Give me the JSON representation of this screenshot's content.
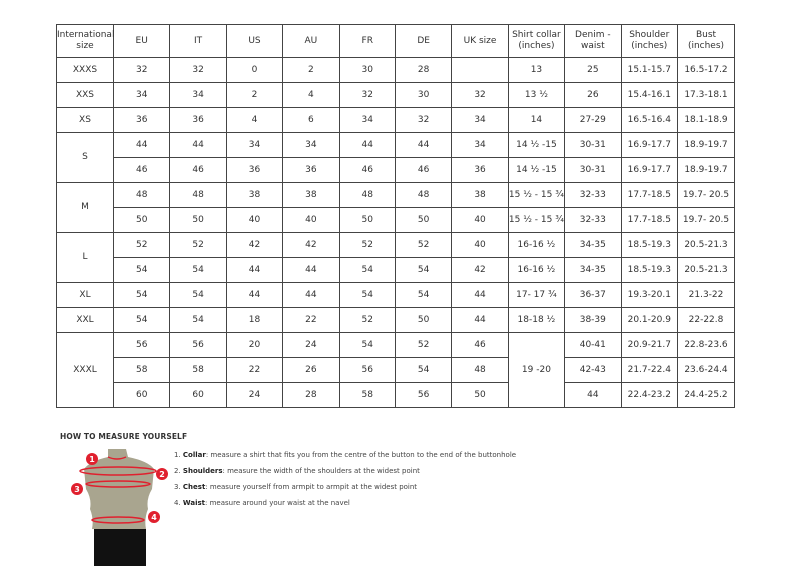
{
  "table": {
    "headers": [
      "International size",
      "EU",
      "IT",
      "US",
      "AU",
      "FR",
      "DE",
      "UK size",
      "Shirt collar (inches)",
      "Denim - waist",
      "Shoulder (inches)",
      "Bust (inches)"
    ],
    "groups": [
      {
        "size": "XXXS",
        "rows": [
          [
            "32",
            "32",
            "0",
            "2",
            "30",
            "28",
            "",
            "13",
            "25",
            "15.1-15.7",
            "16.5-17.2"
          ]
        ]
      },
      {
        "size": "XXS",
        "rows": [
          [
            "34",
            "34",
            "2",
            "4",
            "32",
            "30",
            "32",
            "13 ½",
            "26",
            "15.4-16.1",
            "17.3-18.1"
          ]
        ]
      },
      {
        "size": "XS",
        "rows": [
          [
            "36",
            "36",
            "4",
            "6",
            "34",
            "32",
            "34",
            "14",
            "27-29",
            "16.5-16.4",
            "18.1-18.9"
          ]
        ]
      },
      {
        "size": "S",
        "rows": [
          [
            "44",
            "44",
            "34",
            "34",
            "44",
            "44",
            "34",
            "14 ½ -15",
            "30-31",
            "16.9-17.7",
            "18.9-19.7"
          ],
          [
            "46",
            "46",
            "36",
            "36",
            "46",
            "46",
            "36",
            "14 ½ -15",
            "30-31",
            "16.9-17.7",
            "18.9-19.7"
          ]
        ]
      },
      {
        "size": "M",
        "rows": [
          [
            "48",
            "48",
            "38",
            "38",
            "48",
            "48",
            "38",
            "15 ½ - 15 ¾",
            "32-33",
            "17.7-18.5",
            "19.7- 20.5"
          ],
          [
            "50",
            "50",
            "40",
            "40",
            "50",
            "50",
            "40",
            "15 ½ - 15 ¾",
            "32-33",
            "17.7-18.5",
            "19.7- 20.5"
          ]
        ]
      },
      {
        "size": "L",
        "rows": [
          [
            "52",
            "52",
            "42",
            "42",
            "52",
            "52",
            "40",
            "16-16 ½",
            "34-35",
            "18.5-19.3",
            "20.5-21.3"
          ],
          [
            "54",
            "54",
            "44",
            "44",
            "54",
            "54",
            "42",
            "16-16 ½",
            "34-35",
            "18.5-19.3",
            "20.5-21.3"
          ]
        ]
      },
      {
        "size": "XL",
        "rows": [
          [
            "54",
            "54",
            "44",
            "44",
            "54",
            "54",
            "44",
            "17- 17 ¾",
            "36-37",
            "19.3-20.1",
            "21.3-22"
          ]
        ]
      },
      {
        "size": "XXL",
        "rows": [
          [
            "54",
            "54",
            "18",
            "22",
            "52",
            "50",
            "44",
            "18-18 ½",
            "38-39",
            "20.1-20.9",
            "22-22.8"
          ]
        ]
      },
      {
        "size": "XXXL",
        "collar_merged": "19 -20",
        "rows": [
          [
            "56",
            "56",
            "20",
            "24",
            "54",
            "52",
            "46",
            "40-41",
            "20.9-21.7",
            "22.8-23.6"
          ],
          [
            "58",
            "58",
            "22",
            "26",
            "56",
            "54",
            "48",
            "42-43",
            "21.7-22.4",
            "23.6-24.4"
          ],
          [
            "60",
            "60",
            "24",
            "28",
            "58",
            "56",
            "50",
            "44",
            "22.4-23.2",
            "24.4-25.2"
          ]
        ]
      }
    ]
  },
  "measure": {
    "title": "HOW TO MEASURE YOURSELF",
    "markers": [
      "1",
      "2",
      "3",
      "4"
    ],
    "steps": [
      {
        "num": "1.",
        "label": "Collar",
        "text": ": measure a shirt that fits you from the centre of the button to the end of the buttonhole"
      },
      {
        "num": "2.",
        "label": "Shoulders",
        "text": ": measure the width of the shoulders at the widest point"
      },
      {
        "num": "3.",
        "label": "Chest",
        "text": ": measure yourself from armpit to armpit at the widest point"
      },
      {
        "num": "4.",
        "label": "Waist",
        "text": ": measure around your waist at the navel"
      }
    ],
    "accent": "#e0202e"
  }
}
